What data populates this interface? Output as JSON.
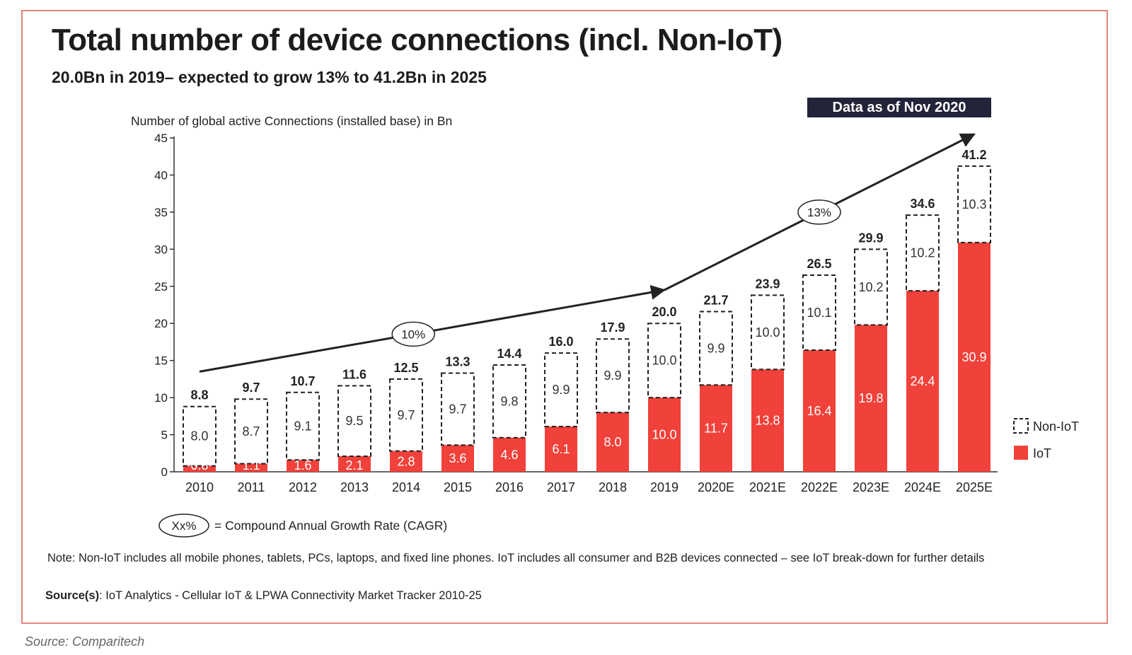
{
  "credit": "Source: Comparitech",
  "badge": "Data as of Nov 2020",
  "note": "Note: Non-IoT includes all mobile phones, tablets, PCs, laptops, and fixed line phones. IoT includes all consumer and B2B devices connected – see IoT break-down for further details",
  "sources_label": "Source(s)",
  "sources_text": ": IoT Analytics - Cellular IoT & LPWA Connectivity Market Tracker 2010-25",
  "cagr_legend": {
    "symbol": "Xx%",
    "text": "= Compound Annual Growth Rate (CAGR)"
  },
  "chart_data": {
    "type": "bar",
    "stacked": true,
    "title": "Total number of device connections (incl. Non-IoT)",
    "subtitle": "20.0Bn in 2019– expected to grow 13% to 41.2Bn in 2025",
    "ylabel": "Number of global active Connections (installed base) in Bn",
    "ylim": [
      0,
      45
    ],
    "yticks": [
      0,
      5,
      10,
      15,
      20,
      25,
      30,
      35,
      40,
      45
    ],
    "categories": [
      "2010",
      "2011",
      "2012",
      "2013",
      "2014",
      "2015",
      "2016",
      "2017",
      "2018",
      "2019",
      "2020E",
      "2021E",
      "2022E",
      "2023E",
      "2024E",
      "2025E"
    ],
    "series": [
      {
        "name": "IoT",
        "color": "#f0413a",
        "values": [
          0.8,
          1.1,
          1.6,
          2.1,
          2.8,
          3.6,
          4.6,
          6.1,
          8.0,
          10.0,
          11.7,
          13.8,
          16.4,
          19.8,
          24.4,
          30.9
        ],
        "labels": [
          "0.8",
          "1.1",
          "1.6",
          "2.1",
          "2.8",
          "3.6",
          "4.6",
          "6.1",
          "8.0",
          "10.0",
          "11.7",
          "13.8",
          "16.4",
          "19.8",
          "24.4",
          "30.9"
        ]
      },
      {
        "name": "Non-IoT",
        "style": "dashed-outline",
        "values": [
          8.0,
          8.7,
          9.1,
          9.5,
          9.7,
          9.7,
          9.8,
          9.9,
          9.9,
          10.0,
          9.9,
          10.0,
          10.1,
          10.2,
          10.2,
          10.3
        ],
        "labels": [
          "8.0",
          "8.7",
          "9.1",
          "9.5",
          "9.7",
          "9.7",
          "9.8",
          "9.9",
          "9.9",
          "10.0",
          "9.9",
          "10.0",
          "10.1",
          "10.2",
          "10.2",
          "10.3"
        ]
      }
    ],
    "totals": [
      "8.8",
      "9.7",
      "10.7",
      "11.6",
      "12.5",
      "13.3",
      "14.4",
      "16.0",
      "17.9",
      "20.0",
      "21.7",
      "23.9",
      "26.5",
      "29.9",
      "34.6",
      "41.2"
    ],
    "cagr_annotations": [
      {
        "label": "10%",
        "from_category": "2010",
        "to_category": "2019"
      },
      {
        "label": "13%",
        "from_category": "2019",
        "to_category": "2025E"
      }
    ],
    "legend": {
      "placement": "right",
      "entries": [
        "Non-IoT",
        "IoT"
      ]
    },
    "grid": false
  }
}
